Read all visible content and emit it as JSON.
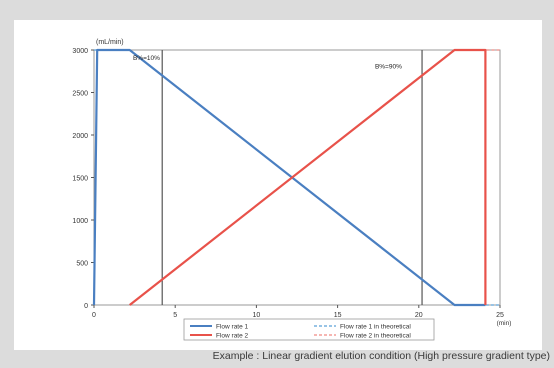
{
  "caption": "Example : Linear gradient elution condition (High pressure gradient type)",
  "chart_data": {
    "type": "line",
    "ylabel": "(mL/min)",
    "xlabel": "(min)",
    "xlim": [
      0,
      25
    ],
    "ylim": [
      0,
      3000
    ],
    "xticks": [
      0,
      5,
      10,
      15,
      20,
      25
    ],
    "yticks": [
      0,
      500,
      1000,
      1500,
      2000,
      2500,
      3000
    ],
    "grid": false,
    "vlines": [
      4.2,
      20.2
    ],
    "annotations": [
      {
        "text": "B%=10%",
        "x": 2.4,
        "y": 2880
      },
      {
        "text": "B%=90%",
        "x": 17.3,
        "y": 2780
      }
    ],
    "series": [
      {
        "name": "Flow rate 1",
        "color": "#4a7fc1",
        "style": "solid",
        "x": [
          0,
          0.2,
          2.2,
          22.2,
          24.1
        ],
        "y": [
          0,
          3000,
          3000,
          0,
          0
        ]
      },
      {
        "name": "Flow rate 2",
        "color": "#e8524a",
        "style": "solid",
        "x": [
          2.2,
          22.2,
          24.1,
          24.1
        ],
        "y": [
          0,
          3000,
          3000,
          0
        ]
      },
      {
        "name": "Flow rate 1 in theoretical",
        "color": "#5aa0d8",
        "style": "dashed",
        "x": [
          0,
          2.2,
          22.2,
          25
        ],
        "y": [
          3000,
          3000,
          0,
          0
        ]
      },
      {
        "name": "Flow rate 2 in theoretical",
        "color": "#f08a84",
        "style": "dashed",
        "x": [
          2.2,
          22.2,
          25
        ],
        "y": [
          0,
          3000,
          3000
        ]
      }
    ],
    "legend": "bottom"
  }
}
